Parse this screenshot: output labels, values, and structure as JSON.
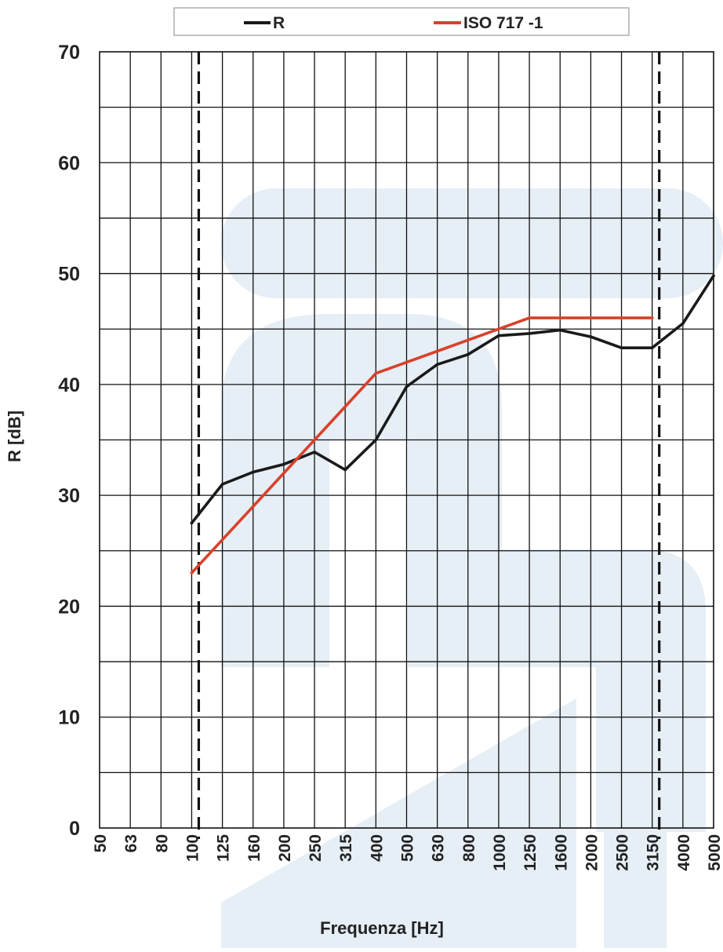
{
  "chart_data": {
    "type": "line",
    "title": "",
    "xlabel": "Frequenza [Hz]",
    "ylabel": "R [dB]",
    "categories": [
      "50",
      "63",
      "80",
      "100",
      "125",
      "160",
      "200",
      "250",
      "315",
      "400",
      "500",
      "630",
      "800",
      "1000",
      "1250",
      "1600",
      "2000",
      "2500",
      "3150",
      "4000",
      "5000"
    ],
    "x_tick_labels": [
      "50",
      "63",
      "80",
      "100",
      "125",
      "160",
      "200",
      "250",
      "315",
      "400",
      "500",
      "630",
      "800",
      "1000",
      "1250",
      "1600",
      "2000",
      "2500",
      "3150",
      "4000",
      "5000"
    ],
    "y_tick_labels": [
      "0",
      "10",
      "20",
      "30",
      "40",
      "50",
      "60",
      "70"
    ],
    "ylim": [
      0,
      70
    ],
    "grid": true,
    "legend_position": "top",
    "series": [
      {
        "name": "R",
        "color": "#1a1a1a",
        "x": [
          "100",
          "125",
          "160",
          "200",
          "250",
          "315",
          "400",
          "500",
          "630",
          "800",
          "1000",
          "1250",
          "1600",
          "2000",
          "2500",
          "3150",
          "4000",
          "5000"
        ],
        "values": [
          27.5,
          31.0,
          32.1,
          32.8,
          33.9,
          32.3,
          35.0,
          39.8,
          41.8,
          42.7,
          44.4,
          44.6,
          44.9,
          44.3,
          43.3,
          43.3,
          45.5,
          49.8
        ]
      },
      {
        "name": "ISO 717 -1",
        "color": "#d9412a",
        "x": [
          "100",
          "125",
          "160",
          "200",
          "250",
          "315",
          "400",
          "500",
          "630",
          "800",
          "1000",
          "1250",
          "1600",
          "2000",
          "2500",
          "3150"
        ],
        "values": [
          23,
          26,
          29,
          32,
          35,
          38,
          41,
          42,
          43,
          44,
          45,
          46,
          46,
          46,
          46,
          46
        ]
      }
    ],
    "reference_lines": [
      {
        "style": "dashed",
        "at": "100"
      },
      {
        "style": "dashed",
        "at": "3150"
      }
    ]
  }
}
